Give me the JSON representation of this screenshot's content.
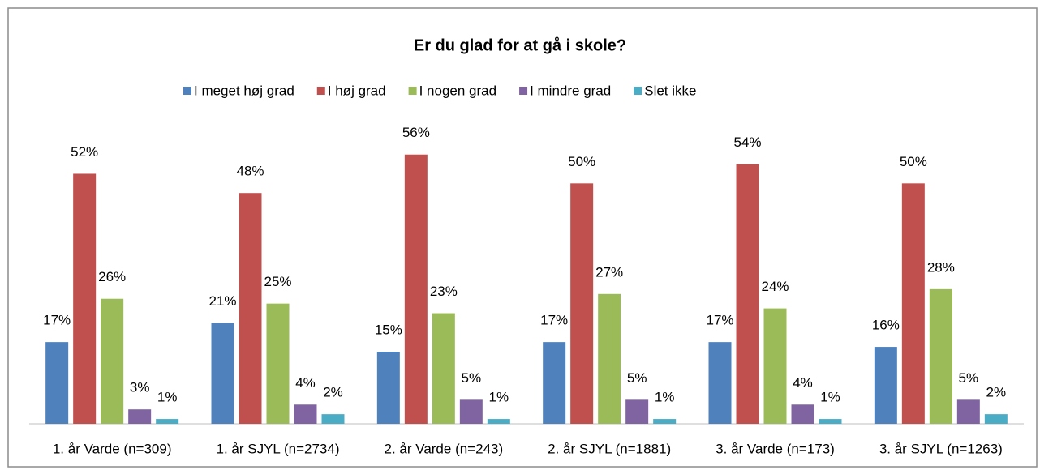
{
  "chart_data": {
    "type": "bar",
    "title": "Er du glad for at gå i skole?",
    "categories": [
      "1. år Varde (n=309)",
      "1. år SJYL (n=2734)",
      "2. år Varde (n=243)",
      "2. år SJYL (n=1881)",
      "3. år Varde (n=173)",
      "3. år SJYL (n=1263)"
    ],
    "series": [
      {
        "name": "I meget høj grad",
        "color": "#4f81bd",
        "values": [
          17,
          21,
          15,
          17,
          17,
          16
        ],
        "value_labels": [
          "17%",
          "21%",
          "15%",
          "17%",
          "17%",
          "16%"
        ]
      },
      {
        "name": "I høj grad",
        "color": "#c0504d",
        "values": [
          52,
          48,
          56,
          50,
          54,
          50
        ],
        "value_labels": [
          "52%",
          "48%",
          "56%",
          "50%",
          "54%",
          "50%"
        ]
      },
      {
        "name": "I nogen grad",
        "color": "#9bbb59",
        "values": [
          26,
          25,
          23,
          27,
          24,
          28
        ],
        "value_labels": [
          "26%",
          "25%",
          "23%",
          "27%",
          "24%",
          "28%"
        ]
      },
      {
        "name": "I mindre grad",
        "color": "#8064a2",
        "values": [
          3,
          4,
          5,
          5,
          4,
          5
        ],
        "value_labels": [
          "3%",
          "4%",
          "5%",
          "5%",
          "4%",
          "5%"
        ]
      },
      {
        "name": "Slet ikke",
        "color": "#4bacc6",
        "values": [
          1,
          2,
          1,
          1,
          1,
          2
        ],
        "value_labels": [
          "1%",
          "2%",
          "1%",
          "1%",
          "1%",
          "2%"
        ]
      }
    ],
    "ylim": [
      0,
      60
    ],
    "legend": "top"
  }
}
